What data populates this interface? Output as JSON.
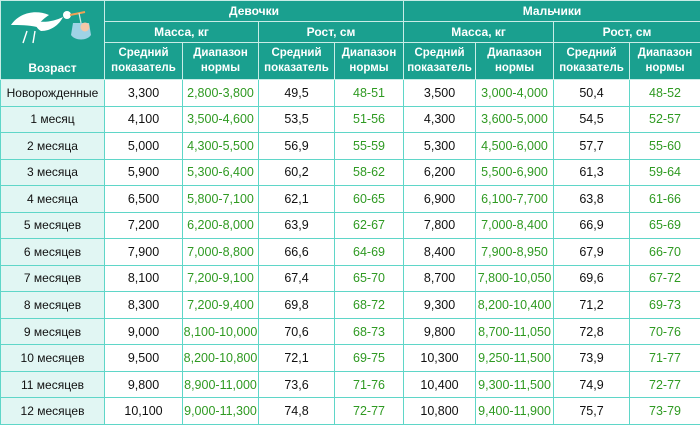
{
  "header": {
    "girls": "Девочки",
    "boys": "Мальчики",
    "mass": "Масса, кг",
    "height": "Рост, см",
    "average": [
      "Средний",
      "показатель"
    ],
    "range": [
      "Диапазон",
      "нормы"
    ],
    "age": "Возраст"
  },
  "icons": {
    "logo": "stork-carrying-baby-icon"
  },
  "colors": {
    "header_bg": "#1aa08f",
    "range_text": "#2f9a22",
    "age_bg": "#e1f6f3",
    "grid": "#5fd6c8"
  },
  "rows": [
    {
      "age": "Новорожденные",
      "g_mass_avg": "3,300",
      "g_mass_range": "2,800-3,800",
      "g_h_avg": "49,5",
      "g_h_range": "48-51",
      "b_mass_avg": "3,500",
      "b_mass_range": "3,000-4,000",
      "b_h_avg": "50,4",
      "b_h_range": "48-52"
    },
    {
      "age": "1 месяц",
      "g_mass_avg": "4,100",
      "g_mass_range": "3,500-4,600",
      "g_h_avg": "53,5",
      "g_h_range": "51-56",
      "b_mass_avg": "4,300",
      "b_mass_range": "3,600-5,000",
      "b_h_avg": "54,5",
      "b_h_range": "52-57"
    },
    {
      "age": "2 месяца",
      "g_mass_avg": "5,000",
      "g_mass_range": "4,300-5,500",
      "g_h_avg": "56,9",
      "g_h_range": "55-59",
      "b_mass_avg": "5,300",
      "b_mass_range": "4,500-6,000",
      "b_h_avg": "57,7",
      "b_h_range": "55-60"
    },
    {
      "age": "3 месяца",
      "g_mass_avg": "5,900",
      "g_mass_range": "5,300-6,400",
      "g_h_avg": "60,2",
      "g_h_range": "58-62",
      "b_mass_avg": "6,200",
      "b_mass_range": "5,500-6,900",
      "b_h_avg": "61,3",
      "b_h_range": "59-64"
    },
    {
      "age": "4 месяца",
      "g_mass_avg": "6,500",
      "g_mass_range": "5,800-7,100",
      "g_h_avg": "62,1",
      "g_h_range": "60-65",
      "b_mass_avg": "6,900",
      "b_mass_range": "6,100-7,700",
      "b_h_avg": "63,8",
      "b_h_range": "61-66"
    },
    {
      "age": "5 месяцев",
      "g_mass_avg": "7,200",
      "g_mass_range": "6,200-8,000",
      "g_h_avg": "63,9",
      "g_h_range": "62-67",
      "b_mass_avg": "7,800",
      "b_mass_range": "7,000-8,400",
      "b_h_avg": "66,9",
      "b_h_range": "65-69"
    },
    {
      "age": "6 месяцев",
      "g_mass_avg": "7,900",
      "g_mass_range": "7,000-8,800",
      "g_h_avg": "66,6",
      "g_h_range": "64-69",
      "b_mass_avg": "8,400",
      "b_mass_range": "7,900-8,950",
      "b_h_avg": "67,9",
      "b_h_range": "66-70"
    },
    {
      "age": "7 месяцев",
      "g_mass_avg": "8,100",
      "g_mass_range": "7,200-9,100",
      "g_h_avg": "67,4",
      "g_h_range": "65-70",
      "b_mass_avg": "8,700",
      "b_mass_range": "7,800-10,050",
      "b_h_avg": "69,6",
      "b_h_range": "67-72"
    },
    {
      "age": "8 месяцев",
      "g_mass_avg": "8,300",
      "g_mass_range": "7,200-9,400",
      "g_h_avg": "69,8",
      "g_h_range": "68-72",
      "b_mass_avg": "9,300",
      "b_mass_range": "8,200-10,400",
      "b_h_avg": "71,2",
      "b_h_range": "69-73"
    },
    {
      "age": "9 месяцев",
      "g_mass_avg": "9,000",
      "g_mass_range": "8,100-10,000",
      "g_h_avg": "70,6",
      "g_h_range": "68-73",
      "b_mass_avg": "9,800",
      "b_mass_range": "8,700-11,050",
      "b_h_avg": "72,8",
      "b_h_range": "70-76"
    },
    {
      "age": "10 месяцев",
      "g_mass_avg": "9,500",
      "g_mass_range": "8,200-10,800",
      "g_h_avg": "72,1",
      "g_h_range": "69-75",
      "b_mass_avg": "10,300",
      "b_mass_range": "9,250-11,500",
      "b_h_avg": "73,9",
      "b_h_range": "71-77"
    },
    {
      "age": "11 месяцев",
      "g_mass_avg": "9,800",
      "g_mass_range": "8,900-11,000",
      "g_h_avg": "73,6",
      "g_h_range": "71-76",
      "b_mass_avg": "10,400",
      "b_mass_range": "9,300-11,500",
      "b_h_avg": "74,9",
      "b_h_range": "72-77"
    },
    {
      "age": "12 месяцев",
      "g_mass_avg": "10,100",
      "g_mass_range": "9,000-11,300",
      "g_h_avg": "74,8",
      "g_h_range": "72-77",
      "b_mass_avg": "10,800",
      "b_mass_range": "9,400-11,900",
      "b_h_avg": "75,7",
      "b_h_range": "73-79"
    }
  ]
}
